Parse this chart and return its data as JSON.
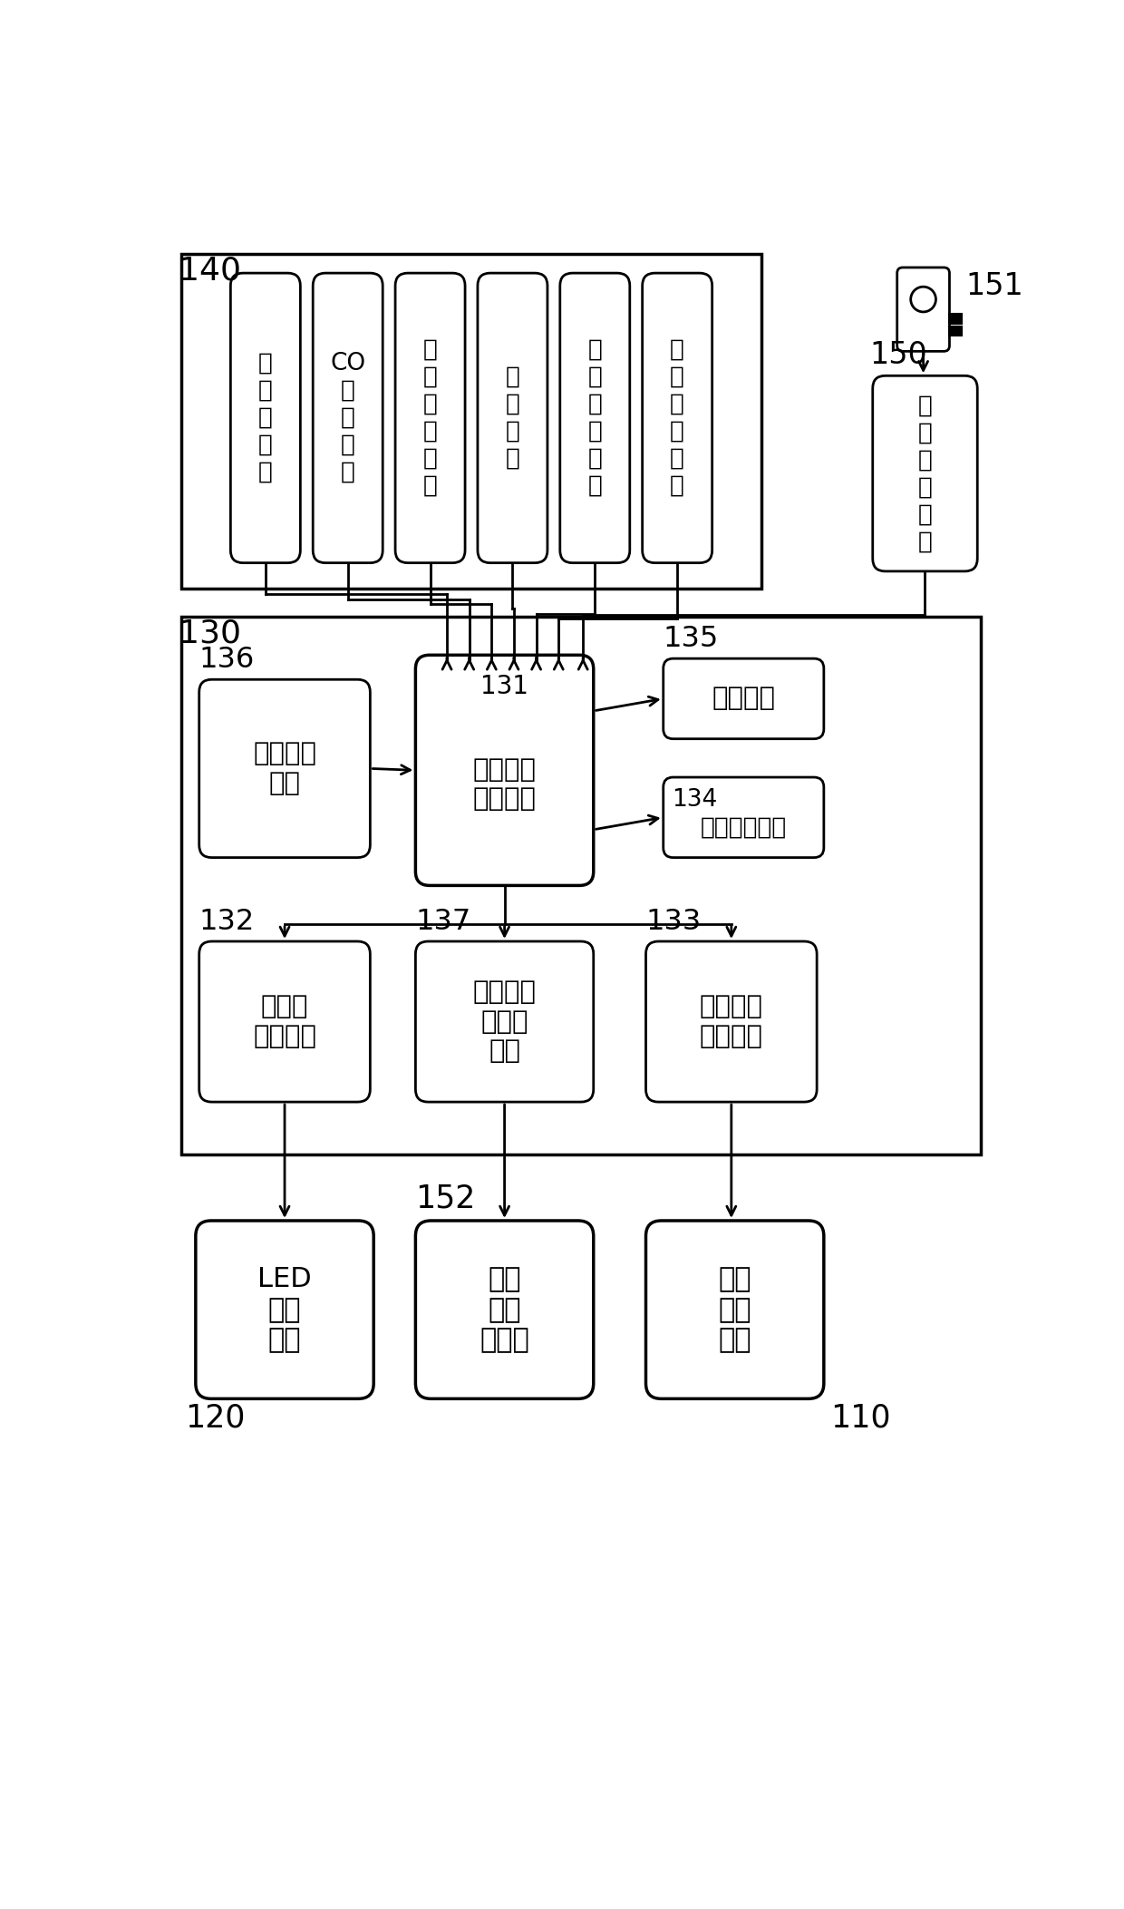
{
  "bg_color": "#ffffff",
  "line_color": "#000000",
  "sensor_texts": [
    "温\n湿\n度\n检\n测",
    "CO\n浓\n度\n检\n测",
    "红\n外\n热\n释\n检\n测",
    "微\n波\n检\n测",
    "安\n装\n高\n度\n检\n测",
    "环\n境\n亮\n度\n检\n测"
  ],
  "parking_analysis_text": "车\n位\n占\n用\n分\n析",
  "data_proc_label": "131",
  "data_proc_text": "数据采集\n处理单元",
  "wireless_text": "无线通信\n单元",
  "display_text": "显示单元",
  "param_label": "134",
  "param_text": "参数设定接口",
  "power_text": "可调节\n恒流电源",
  "indicator_text": "车位占用\n指示灯\n驱动",
  "fan_ctrl_text": "风机启动\n控制模块",
  "led_text": "LED\n照明\n灯具",
  "parking_light_text": "车位\n占用\n指示灯",
  "fan_text": "贯流\n换气\n风机",
  "ref_numbers": {
    "n140": "140",
    "n130": "130",
    "n151": "151",
    "n150": "150",
    "n136": "136",
    "n131": "131",
    "n135": "135",
    "n134": "134",
    "n132": "132",
    "n137": "137",
    "n133": "133",
    "n120": "120",
    "n152": "152",
    "n110": "110"
  }
}
